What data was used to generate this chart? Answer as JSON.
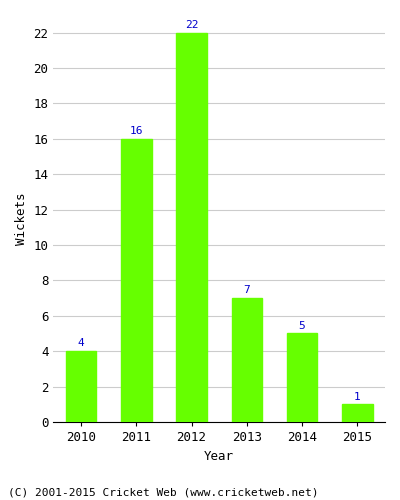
{
  "years": [
    "2010",
    "2011",
    "2012",
    "2013",
    "2014",
    "2015"
  ],
  "values": [
    4,
    16,
    22,
    7,
    5,
    1
  ],
  "bar_color": "#66ff00",
  "bar_edgecolor": "#66ff00",
  "label_color": "#0000cc",
  "ylabel": "Wickets",
  "xlabel": "Year",
  "ylim": [
    0,
    23
  ],
  "yticks": [
    0,
    2,
    4,
    6,
    8,
    10,
    12,
    14,
    16,
    18,
    20,
    22
  ],
  "grid_color": "#cccccc",
  "background_color": "#ffffff",
  "footer": "(C) 2001-2015 Cricket Web (www.cricketweb.net)",
  "label_fontsize": 8,
  "axis_fontsize": 9,
  "footer_fontsize": 8
}
